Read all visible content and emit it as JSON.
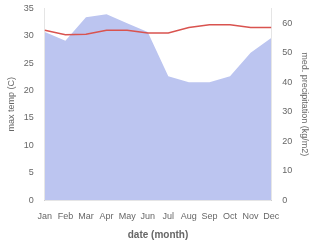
{
  "chart_data": {
    "type": "line",
    "xlabel": "date (month)",
    "ylabel": "max temp (C)",
    "y2label": "med. precipitation (kg/m2)",
    "categories": [
      "Jan",
      "Feb",
      "Mar",
      "Apr",
      "May",
      "Jun",
      "Jul",
      "Aug",
      "Sep",
      "Oct",
      "Nov",
      "Dec"
    ],
    "series": [
      {
        "type": "area",
        "axis": "y2",
        "color": "#bcc5f0",
        "values": [
          57,
          54,
          62,
          63,
          60,
          57,
          42,
          40,
          40,
          42,
          50,
          55
        ]
      },
      {
        "type": "line",
        "color": "#d9534f",
        "values": [
          31.0,
          30.2,
          30.3,
          31.0,
          31.0,
          30.5,
          30.5,
          31.5,
          32.0,
          32.0,
          31.5,
          31.5
        ]
      }
    ],
    "ylim": [
      0,
      35
    ],
    "yticks": [
      0,
      5,
      10,
      15,
      20,
      25,
      30,
      35
    ],
    "y2lim": [
      0,
      65
    ],
    "y2ticks": [
      0,
      10,
      20,
      30,
      40,
      50,
      60
    ],
    "grid": false
  }
}
